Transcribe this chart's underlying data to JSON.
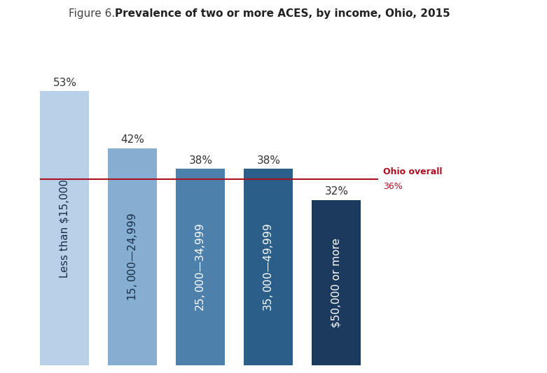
{
  "title_prefix": "Figure 6. ",
  "title_bold": "Prevalence of two or more ACES, by income, Ohio, 2015",
  "categories": [
    "Less than $15,000",
    "$15,000 — $24,999",
    "$25,000 — $34,999",
    "$35,000 — $49,999",
    "$50,000 or more"
  ],
  "values": [
    53,
    42,
    38,
    38,
    32
  ],
  "bar_colors": [
    "#b8d0e8",
    "#85aed0",
    "#4d81ab",
    "#2b5f8a",
    "#1b3a5e"
  ],
  "bar_text_colors": [
    "#1a2e4a",
    "#1a2e4a",
    "#ffffff",
    "#ffffff",
    "#ffffff"
  ],
  "ohio_overall_value": 36,
  "ohio_line_color": "#aa1122",
  "ohio_label_color": "#aa1122",
  "background_color": "#ffffff",
  "bar_label_fontsize": 11,
  "title_fontsize": 11,
  "inner_label_fontsize": 11,
  "ylim": [
    0,
    62
  ],
  "bar_width": 0.72
}
